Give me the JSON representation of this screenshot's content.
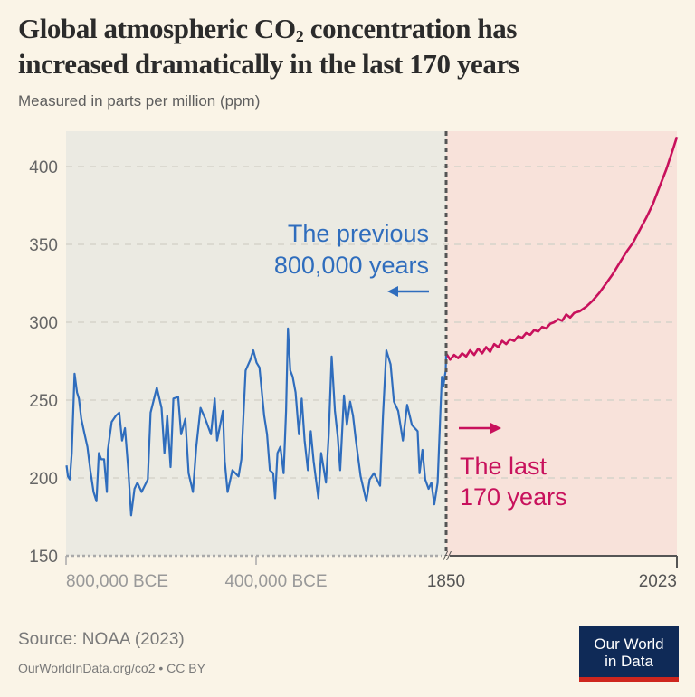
{
  "title_line1": "Global atmospheric CO",
  "title_sub": "2",
  "title_line1_rest": " concentration has",
  "title_line2": "increased dramatically in the last 170 years",
  "subtitle": "Measured in parts per million (ppm)",
  "source": "Source: NOAA (2023)",
  "url": "OurWorldInData.org/co2 • CC BY",
  "logo_text": [
    "Our World",
    "in Data"
  ],
  "colors": {
    "background": "#faf4e7",
    "past": "#2f6dbd",
    "recent": "#c8115c",
    "past_panel": "#ebeae2",
    "recent_panel": "#f8e2da",
    "logo": "#0f2a57",
    "logo_bar": "#ce261e"
  },
  "chart_data": {
    "type": "line",
    "title": "Global atmospheric CO2 concentration has increased dramatically in the last 170 years",
    "ylabel": "Measured in parts per million (ppm)",
    "ylim": [
      150,
      420
    ],
    "yticks": [
      "150",
      "200",
      "250",
      "300",
      "350",
      "400"
    ],
    "xticks_past": [
      "800,000 BCE",
      "400,000 BCE"
    ],
    "xticks_recent": [
      "1850",
      "2023"
    ],
    "grid": true,
    "annotations": {
      "past": [
        "The previous",
        "800,000 years"
      ],
      "recent": [
        "The last",
        "170 years"
      ]
    },
    "series": [
      {
        "segment": "past",
        "x_unit": "year",
        "x": [
          -799000,
          -796000,
          -792000,
          -788000,
          -782000,
          -777000,
          -773000,
          -768000,
          -761000,
          -755000,
          -749000,
          -742000,
          -736000,
          -731000,
          -726000,
          -720000,
          -714000,
          -712000,
          -704000,
          -695000,
          -688000,
          -682000,
          -676000,
          -669000,
          -663000,
          -656000,
          -650000,
          -641000,
          -628000,
          -622000,
          -609000,
          -599000,
          -593000,
          -587000,
          -580000,
          -574000,
          -564000,
          -558000,
          -549000,
          -542000,
          -533000,
          -526000,
          -517000,
          -507000,
          -495000,
          -487000,
          -482000,
          -477000,
          -470000,
          -466000,
          -460000,
          -450000,
          -437000,
          -431000,
          -422000,
          -412000,
          -406000,
          -399000,
          -393000,
          -383000,
          -377000,
          -371000,
          -364000,
          -360000,
          -355000,
          -349000,
          -342000,
          -337000,
          -333000,
          -328000,
          -323000,
          -317000,
          -310000,
          -304000,
          -298000,
          -291000,
          -285000,
          -279000,
          -269000,
          -263000,
          -253000,
          -247000,
          -241000,
          -234000,
          -228000,
          -223000,
          -215000,
          -209000,
          -202000,
          -196000,
          -190000,
          -180000,
          -168000,
          -161000,
          -152000,
          -139000,
          -133000,
          -126000,
          -117000,
          -110000,
          -101000,
          -91000,
          -82000,
          -72000,
          -60000,
          -56000,
          -50000,
          -44000,
          -37000,
          -31000,
          -25000,
          -18000,
          -12000,
          -9000,
          -6000,
          -1000,
          1850
        ],
        "values": [
          208,
          201,
          199,
          216,
          267,
          255,
          251,
          238,
          228,
          220,
          205,
          191,
          185,
          216,
          212,
          212,
          191,
          218,
          236,
          240,
          242,
          224,
          232,
          205,
          176,
          193,
          197,
          191,
          199,
          242,
          258,
          245,
          216,
          240,
          207,
          251,
          252,
          228,
          238,
          203,
          191,
          220,
          245,
          238,
          228,
          251,
          224,
          232,
          243,
          211,
          191,
          205,
          201,
          212,
          269,
          276,
          282,
          274,
          271,
          240,
          228,
          205,
          203,
          187,
          216,
          220,
          203,
          243,
          296,
          269,
          265,
          255,
          228,
          251,
          224,
          205,
          230,
          211,
          187,
          216,
          197,
          228,
          278,
          243,
          226,
          205,
          253,
          234,
          249,
          240,
          224,
          201,
          185,
          199,
          203,
          195,
          240,
          282,
          273,
          249,
          243,
          224,
          247,
          234,
          230,
          203,
          218,
          199,
          193,
          197,
          183,
          197,
          243,
          265,
          259,
          269,
          280
        ]
      },
      {
        "segment": "recent",
        "x_unit": "year",
        "x": [
          1850,
          1853,
          1856,
          1859,
          1862,
          1865,
          1868,
          1871,
          1874,
          1877,
          1880,
          1883,
          1886,
          1889,
          1892,
          1895,
          1898,
          1901,
          1904,
          1907,
          1910,
          1913,
          1916,
          1919,
          1922,
          1925,
          1928,
          1931,
          1934,
          1937,
          1940,
          1943,
          1946,
          1950,
          1955,
          1960,
          1965,
          1970,
          1975,
          1980,
          1985,
          1990,
          1995,
          2000,
          2005,
          2010,
          2015,
          2020,
          2023
        ],
        "values": [
          280,
          276,
          279,
          277,
          280,
          278,
          282,
          279,
          283,
          280,
          284,
          281,
          286,
          284,
          288,
          286,
          289,
          288,
          291,
          290,
          293,
          292,
          295,
          294,
          297,
          296,
          299,
          300,
          302,
          301,
          305,
          303,
          306,
          307,
          310,
          314,
          319,
          325,
          331,
          338,
          345,
          351,
          359,
          367,
          376,
          387,
          398,
          411,
          419
        ]
      }
    ]
  }
}
